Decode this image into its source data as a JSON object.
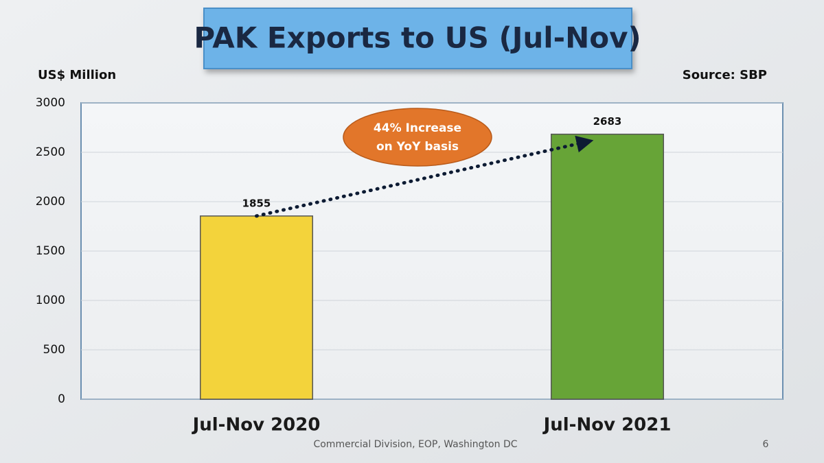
{
  "chart_data": {
    "type": "bar",
    "title": "PAK Exports to US (Jul-Nov)",
    "y_axis_label": "US$ Million",
    "source": "Source: SBP",
    "categories": [
      "Jul-Nov 2020",
      "Jul-Nov 2021"
    ],
    "values": [
      1855,
      2683
    ],
    "colors": [
      "#f3d33b",
      "#67a437"
    ],
    "ylim": [
      0,
      3000
    ],
    "yticks": [
      0,
      500,
      1000,
      1500,
      2000,
      2500,
      3000
    ],
    "grid": true,
    "annotation": [
      "44% Increase",
      "on YoY basis"
    ],
    "footer": "Commercial Division, EOP, Washington DC",
    "page_number": "6"
  }
}
